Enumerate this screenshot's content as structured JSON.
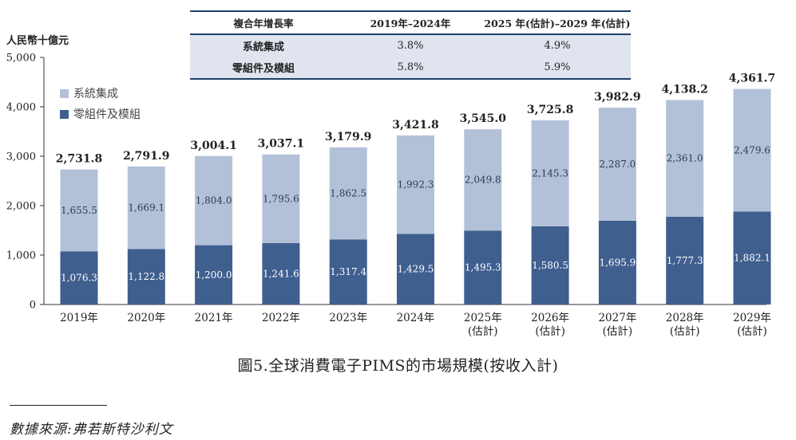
{
  "cagr_table": {
    "header": [
      "複合年增長率",
      "2019年–2024年",
      "2025 年(估計)–2029 年(估計)"
    ],
    "rows": [
      {
        "label": "系統集成",
        "v1": "3.8%",
        "v2": "4.9%"
      },
      {
        "label": "零組件及模組",
        "v1": "5.8%",
        "v2": "5.9%"
      }
    ]
  },
  "chart_data": {
    "type": "bar",
    "stacked": true,
    "ylabel": "人民幣十億元",
    "ylim": [
      0,
      5000
    ],
    "yticks": [
      "0",
      "1,000",
      "2,000",
      "3,000",
      "4,000",
      "5,000"
    ],
    "categories": [
      "2019年",
      "2020年",
      "2021年",
      "2022年",
      "2023年",
      "2024年",
      "2025年",
      "2026年",
      "2027年",
      "2028年",
      "2029年"
    ],
    "category_sublabels": [
      "",
      "",
      "",
      "",
      "",
      "",
      "(估計)",
      "(估計)",
      "(估計)",
      "(估計)",
      "(估計)"
    ],
    "totals": [
      2731.8,
      2791.9,
      3004.1,
      3037.1,
      3179.9,
      3421.8,
      3545.0,
      3725.8,
      3982.9,
      4138.2,
      4361.7
    ],
    "total_labels": [
      "2,731.8",
      "2,791.9",
      "3,004.1",
      "3,037.1",
      "3,179.9",
      "3,421.8",
      "3,545.0",
      "3,725.8",
      "3,982.9",
      "4,138.2",
      "4,361.7"
    ],
    "series": [
      {
        "name": "零組件及模組",
        "color": "#3f5f8f",
        "values": [
          1076.3,
          1122.8,
          1200.0,
          1241.6,
          1317.4,
          1429.5,
          1495.3,
          1580.5,
          1695.9,
          1777.3,
          1882.1
        ],
        "labels": [
          "1,076.3",
          "1,122.8",
          "1,200.0",
          "1,241.6",
          "1,317.4",
          "1,429.5",
          "1,495.3",
          "1,580.5",
          "1,695.9",
          "1,777.3",
          "1,882.1"
        ]
      },
      {
        "name": "系統集成",
        "color": "#b3c1d8",
        "values": [
          1655.5,
          1669.1,
          1804.0,
          1795.6,
          1862.5,
          1992.3,
          2049.8,
          2145.3,
          2287.0,
          2361.0,
          2479.6
        ],
        "labels": [
          "1,655.5",
          "1,669.1",
          "1,804.0",
          "1,795.6",
          "1,862.5",
          "1,992.3",
          "2,049.8",
          "2,145.3",
          "2,287.0",
          "2,361.0",
          "2,479.6"
        ]
      }
    ],
    "legend_position": "top-left",
    "legend": [
      {
        "name": "系統集成",
        "color": "#b3c1d8"
      },
      {
        "name": "零組件及模組",
        "color": "#3f5f8f"
      }
    ]
  },
  "caption": "圖5.全球消費電子PIMS的市場規模(按收入計)",
  "source": "數據來源:弗若斯特沙利文"
}
